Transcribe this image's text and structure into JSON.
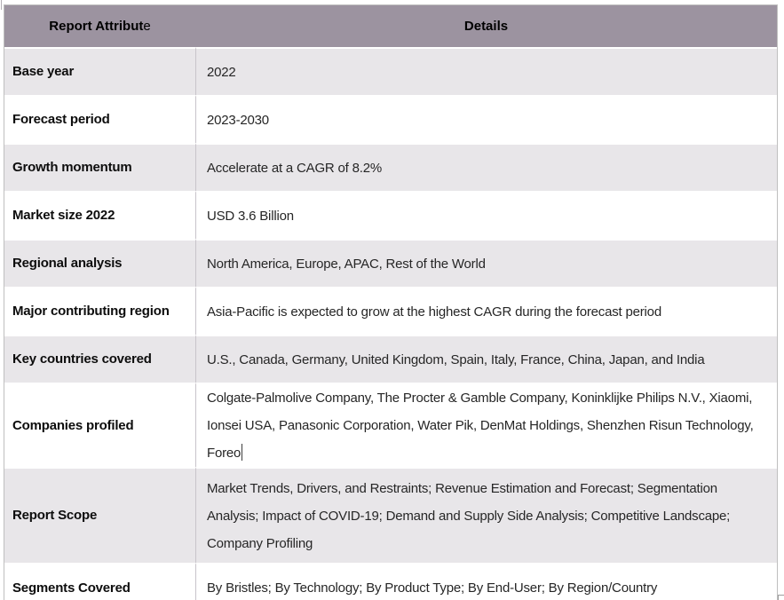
{
  "table": {
    "header": {
      "attribute_label_bold": "Report Attribut",
      "attribute_label_tail": "e",
      "details_label": "Details"
    },
    "rows": [
      {
        "attribute": "Base year",
        "details": "2022"
      },
      {
        "attribute": "Forecast period",
        "details": "2023-2030"
      },
      {
        "attribute": "Growth momentum",
        "details": "Accelerate at a CAGR of 8.2%"
      },
      {
        "attribute": "Market size 2022",
        "details": "USD 3.6 Billion"
      },
      {
        "attribute": "Regional analysis",
        "details": "North America, Europe, APAC, Rest of the World"
      },
      {
        "attribute": "Major contributing region",
        "details": "Asia-Pacific is expected to grow at the highest CAGR during the forecast period"
      },
      {
        "attribute": "Key countries covered",
        "details": "U.S., Canada, Germany, United Kingdom, Spain, Italy, France, China, Japan, and India"
      },
      {
        "attribute": "Companies profiled",
        "details": "Colgate-Palmolive Company, The Procter & Gamble Company, Koninklijke Philips N.V., Xiaomi, Ionsei USA, Panasonic Corporation, Water Pik, DenMat Holdings, Shenzhen Risun Technology, Foreo"
      },
      {
        "attribute": "Report Scope",
        "details": "Market Trends, Drivers, and Restraints; Revenue Estimation and Forecast; Segmentation Analysis; Impact of COVID-19; Demand and Supply Side Analysis; Competitive Landscape; Company Profiling"
      },
      {
        "attribute": "Segments Covered",
        "details": "By Bristles; By Technology; By Product Type; By End-User; By Region/Country"
      }
    ]
  },
  "colors": {
    "header_bg": "#9C93A0",
    "band_row_bg": "#E8E6E9",
    "white_row_bg": "#FFFFFF",
    "outer_border": "#BFBFBF",
    "column_divider": "#C8C4CA",
    "header_text": "#000000",
    "label_text": "#0D0D0D",
    "body_text": "#262626"
  }
}
